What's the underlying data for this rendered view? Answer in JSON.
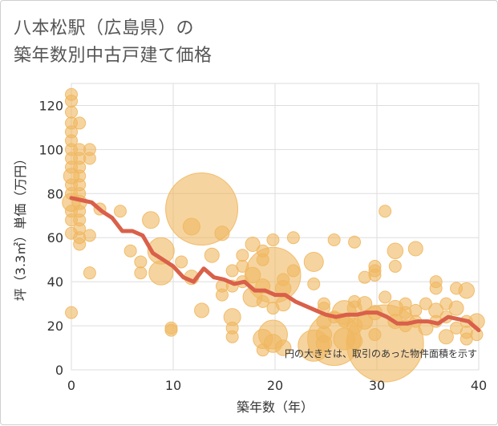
{
  "title_lines": [
    "八本松駅（広島県）の",
    "築年数別中古戸建て価格"
  ],
  "chart_data": {
    "type": "scatter",
    "title": "八本松駅（広島県）の築年数別中古戸建て価格",
    "xlabel": "築年数（年）",
    "ylabel": "坪（3.3㎡）単価（万円）",
    "xlim": [
      0,
      40
    ],
    "ylim": [
      0,
      130
    ],
    "xticks": [
      0,
      10,
      20,
      30,
      40
    ],
    "yticks": [
      0,
      20,
      40,
      60,
      80,
      100,
      120
    ],
    "grid": true,
    "note": "円の大きさは、取引のあった物件面積を示す",
    "colors": {
      "bubble": "#f0b860",
      "trend": "#d9604a",
      "grid": "#dddddd"
    },
    "bubbles": [
      {
        "x": 0,
        "y": 125,
        "s": 1
      },
      {
        "x": 0,
        "y": 122,
        "s": 1
      },
      {
        "x": 0,
        "y": 117,
        "s": 1
      },
      {
        "x": 0,
        "y": 112,
        "s": 1
      },
      {
        "x": 0,
        "y": 108,
        "s": 1
      },
      {
        "x": 0,
        "y": 104,
        "s": 1
      },
      {
        "x": 0,
        "y": 100,
        "s": 1
      },
      {
        "x": 0,
        "y": 96,
        "s": 1
      },
      {
        "x": 0,
        "y": 92,
        "s": 1
      },
      {
        "x": 0,
        "y": 88,
        "s": 1.3
      },
      {
        "x": 0,
        "y": 84,
        "s": 1
      },
      {
        "x": 0,
        "y": 80,
        "s": 1
      },
      {
        "x": 0,
        "y": 76,
        "s": 1.5
      },
      {
        "x": 0,
        "y": 72,
        "s": 1
      },
      {
        "x": 0,
        "y": 68,
        "s": 1
      },
      {
        "x": 0,
        "y": 62,
        "s": 1
      },
      {
        "x": 0,
        "y": 26,
        "s": 1
      },
      {
        "x": 0.8,
        "y": 112,
        "s": 1
      },
      {
        "x": 0.8,
        "y": 100,
        "s": 1
      },
      {
        "x": 0.8,
        "y": 96,
        "s": 1
      },
      {
        "x": 0.8,
        "y": 92,
        "s": 1
      },
      {
        "x": 0.8,
        "y": 88,
        "s": 1
      },
      {
        "x": 0.8,
        "y": 84,
        "s": 1
      },
      {
        "x": 0.8,
        "y": 80,
        "s": 1
      },
      {
        "x": 0.8,
        "y": 76,
        "s": 1.2
      },
      {
        "x": 0.8,
        "y": 72,
        "s": 1
      },
      {
        "x": 0.8,
        "y": 68,
        "s": 1
      },
      {
        "x": 0.8,
        "y": 64,
        "s": 1
      },
      {
        "x": 0.8,
        "y": 60,
        "s": 1
      },
      {
        "x": 0.8,
        "y": 57,
        "s": 1
      },
      {
        "x": 1.8,
        "y": 100,
        "s": 1
      },
      {
        "x": 1.8,
        "y": 96,
        "s": 1
      },
      {
        "x": 1.8,
        "y": 61,
        "s": 1
      },
      {
        "x": 1.8,
        "y": 44,
        "s": 1
      },
      {
        "x": 2.8,
        "y": 73,
        "s": 1
      },
      {
        "x": 4.8,
        "y": 72,
        "s": 1
      },
      {
        "x": 5.8,
        "y": 54,
        "s": 1
      },
      {
        "x": 6.8,
        "y": 49,
        "s": 1
      },
      {
        "x": 6.8,
        "y": 44,
        "s": 1
      },
      {
        "x": 7.8,
        "y": 68,
        "s": 1.4
      },
      {
        "x": 8.8,
        "y": 54,
        "s": 2.2
      },
      {
        "x": 8.8,
        "y": 44,
        "s": 2
      },
      {
        "x": 9.8,
        "y": 19,
        "s": 1
      },
      {
        "x": 9.8,
        "y": 18,
        "s": 1
      },
      {
        "x": 10.8,
        "y": 49,
        "s": 1
      },
      {
        "x": 11.8,
        "y": 65,
        "s": 1.4
      },
      {
        "x": 11.8,
        "y": 42,
        "s": 1.2
      },
      {
        "x": 12.8,
        "y": 73,
        "s": 6
      },
      {
        "x": 12.8,
        "y": 27,
        "s": 1.2
      },
      {
        "x": 13.8,
        "y": 52,
        "s": 1.2
      },
      {
        "x": 14.8,
        "y": 62,
        "s": 1.2
      },
      {
        "x": 14.8,
        "y": 38,
        "s": 1
      },
      {
        "x": 14.8,
        "y": 34,
        "s": 1
      },
      {
        "x": 15.8,
        "y": 45,
        "s": 1
      },
      {
        "x": 15.8,
        "y": 38,
        "s": 1
      },
      {
        "x": 15.8,
        "y": 24,
        "s": 1.4
      },
      {
        "x": 15.8,
        "y": 19,
        "s": 1
      },
      {
        "x": 15.8,
        "y": 15,
        "s": 1
      },
      {
        "x": 16.8,
        "y": 52,
        "s": 1
      },
      {
        "x": 16.8,
        "y": 47,
        "s": 1
      },
      {
        "x": 16.8,
        "y": 40,
        "s": 1
      },
      {
        "x": 17.8,
        "y": 57,
        "s": 1.2
      },
      {
        "x": 17.8,
        "y": 43,
        "s": 1.3
      },
      {
        "x": 17.8,
        "y": 33,
        "s": 1.6
      },
      {
        "x": 18.8,
        "y": 54,
        "s": 1
      },
      {
        "x": 18.8,
        "y": 50,
        "s": 1
      },
      {
        "x": 18.8,
        "y": 38,
        "s": 1.2
      },
      {
        "x": 18.8,
        "y": 31,
        "s": 1
      },
      {
        "x": 18.8,
        "y": 14,
        "s": 1.6
      },
      {
        "x": 18.8,
        "y": 9,
        "s": 1
      },
      {
        "x": 19.8,
        "y": 59,
        "s": 1
      },
      {
        "x": 19.8,
        "y": 43,
        "s": 4.6
      },
      {
        "x": 19.8,
        "y": 28,
        "s": 1
      },
      {
        "x": 19.8,
        "y": 16,
        "s": 2.4
      },
      {
        "x": 19.8,
        "y": 12,
        "s": 1.5
      },
      {
        "x": 20.8,
        "y": 41,
        "s": 1
      },
      {
        "x": 20.8,
        "y": 37,
        "s": 1.3
      },
      {
        "x": 20.8,
        "y": 30,
        "s": 1.2
      },
      {
        "x": 20.8,
        "y": 10,
        "s": 1.3
      },
      {
        "x": 21.8,
        "y": 60,
        "s": 1
      },
      {
        "x": 21.8,
        "y": 45,
        "s": 1
      },
      {
        "x": 23.8,
        "y": 49,
        "s": 1.6
      },
      {
        "x": 23.8,
        "y": 39,
        "s": 1
      },
      {
        "x": 23.8,
        "y": 11,
        "s": 2.6
      },
      {
        "x": 24.8,
        "y": 30,
        "s": 1
      },
      {
        "x": 24.8,
        "y": 28,
        "s": 1
      },
      {
        "x": 24.8,
        "y": 22,
        "s": 1.2
      },
      {
        "x": 24.8,
        "y": 16,
        "s": 1.3
      },
      {
        "x": 24.8,
        "y": 12,
        "s": 1.3
      },
      {
        "x": 25.8,
        "y": 59,
        "s": 1
      },
      {
        "x": 25.8,
        "y": 24,
        "s": 1
      },
      {
        "x": 25.8,
        "y": 14,
        "s": 4.4
      },
      {
        "x": 26.8,
        "y": 26,
        "s": 2
      },
      {
        "x": 26.8,
        "y": 22,
        "s": 1
      },
      {
        "x": 26.8,
        "y": 14,
        "s": 1.8
      },
      {
        "x": 27.8,
        "y": 58,
        "s": 1
      },
      {
        "x": 27.8,
        "y": 31,
        "s": 1
      },
      {
        "x": 27.8,
        "y": 28,
        "s": 1.2
      },
      {
        "x": 27.8,
        "y": 20,
        "s": 1.3
      },
      {
        "x": 27.8,
        "y": 13,
        "s": 1.3
      },
      {
        "x": 28.8,
        "y": 42,
        "s": 1
      },
      {
        "x": 28.8,
        "y": 30,
        "s": 1.2
      },
      {
        "x": 28.8,
        "y": 22,
        "s": 1.3
      },
      {
        "x": 29.8,
        "y": 47,
        "s": 1
      },
      {
        "x": 29.8,
        "y": 45,
        "s": 1
      },
      {
        "x": 29.8,
        "y": 43,
        "s": 1
      },
      {
        "x": 29.8,
        "y": 26,
        "s": 1.2
      },
      {
        "x": 29.8,
        "y": 16,
        "s": 1
      },
      {
        "x": 30.8,
        "y": 72,
        "s": 1
      },
      {
        "x": 30.8,
        "y": 33,
        "s": 1
      },
      {
        "x": 30.8,
        "y": 12,
        "s": 6.4
      },
      {
        "x": 31.8,
        "y": 54,
        "s": 1.3
      },
      {
        "x": 31.8,
        "y": 47,
        "s": 1
      },
      {
        "x": 31.8,
        "y": 28,
        "s": 1.3
      },
      {
        "x": 31.8,
        "y": 22,
        "s": 1.2
      },
      {
        "x": 32.8,
        "y": 30,
        "s": 1
      },
      {
        "x": 32.8,
        "y": 26,
        "s": 1
      },
      {
        "x": 32.8,
        "y": 20,
        "s": 1
      },
      {
        "x": 33.8,
        "y": 55,
        "s": 1.2
      },
      {
        "x": 33.8,
        "y": 27,
        "s": 1
      },
      {
        "x": 33.8,
        "y": 22,
        "s": 1
      },
      {
        "x": 34.8,
        "y": 30,
        "s": 1
      },
      {
        "x": 34.8,
        "y": 19,
        "s": 1.2
      },
      {
        "x": 35.8,
        "y": 40,
        "s": 1
      },
      {
        "x": 35.8,
        "y": 37,
        "s": 1
      },
      {
        "x": 35.8,
        "y": 27,
        "s": 1.2
      },
      {
        "x": 35.8,
        "y": 22,
        "s": 1
      },
      {
        "x": 36.8,
        "y": 30,
        "s": 1
      },
      {
        "x": 36.8,
        "y": 24,
        "s": 1
      },
      {
        "x": 36.8,
        "y": 15,
        "s": 1.2
      },
      {
        "x": 37.8,
        "y": 37,
        "s": 1
      },
      {
        "x": 37.8,
        "y": 28,
        "s": 1.2
      },
      {
        "x": 37.8,
        "y": 19,
        "s": 1
      },
      {
        "x": 38.8,
        "y": 36,
        "s": 1.3
      },
      {
        "x": 38.8,
        "y": 22,
        "s": 1
      },
      {
        "x": 38.8,
        "y": 17,
        "s": 1
      },
      {
        "x": 38.8,
        "y": 14,
        "s": 1
      },
      {
        "x": 39.8,
        "y": 22,
        "s": 1.3
      },
      {
        "x": 39.8,
        "y": 16,
        "s": 1
      }
    ],
    "trend": {
      "x": [
        0,
        1,
        2,
        3,
        4,
        5,
        6,
        7,
        8,
        9,
        10,
        11,
        12,
        13,
        14,
        15,
        16,
        17,
        18,
        19,
        20,
        21,
        22,
        23,
        24,
        25,
        26,
        27,
        28,
        29,
        30,
        31,
        32,
        33,
        34,
        35,
        36,
        37,
        38,
        39,
        40
      ],
      "y": [
        78,
        77,
        76,
        72,
        69,
        63,
        63,
        61,
        53,
        50,
        47,
        42,
        40,
        46,
        42,
        41,
        39,
        40,
        36,
        36,
        34,
        34,
        31,
        29,
        27,
        25,
        24,
        25,
        25,
        26,
        26,
        24,
        21,
        21,
        22,
        22,
        21,
        24,
        23,
        22,
        18
      ]
    }
  }
}
